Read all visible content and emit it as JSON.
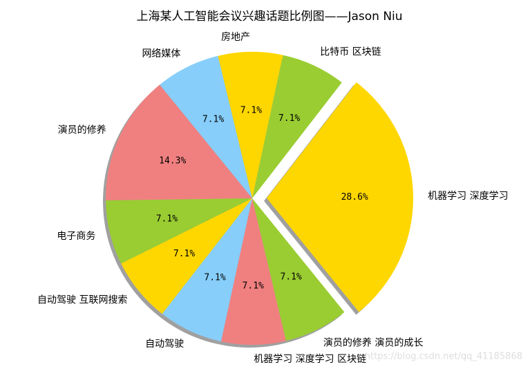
{
  "chart_data": {
    "type": "pie",
    "title": "上海某人工智能会议兴趣话题比例图——Jason Niu",
    "categories": [
      "机器学习 深度学习",
      "比特币 区块链",
      "房地产",
      "网络媒体",
      "演员的修养",
      "电子商务",
      "自动驾驶 互联网搜索",
      "自动驾驶",
      "机器学习 深度学习 区块链",
      "演员的修养 演员的成长"
    ],
    "values": [
      28.6,
      7.1,
      7.1,
      7.1,
      14.3,
      7.1,
      7.1,
      7.1,
      7.1,
      7.1
    ],
    "value_labels": [
      "28.6%",
      "7.1%",
      "7.1%",
      "7.1%",
      "14.3%",
      "7.1%",
      "7.1%",
      "7.1%",
      "7.1%",
      "7.1%"
    ],
    "colors": [
      "#FFD700",
      "#9ACD32",
      "#FFD700",
      "#87CEFA",
      "#F08080",
      "#9ACD32",
      "#FFD700",
      "#87CEFA",
      "#F08080",
      "#9ACD32"
    ],
    "explode": [
      true,
      false,
      false,
      false,
      false,
      false,
      false,
      false,
      false,
      false
    ],
    "shadow": true
  },
  "watermark": "https://blog.csdn.net/qq_41185868"
}
